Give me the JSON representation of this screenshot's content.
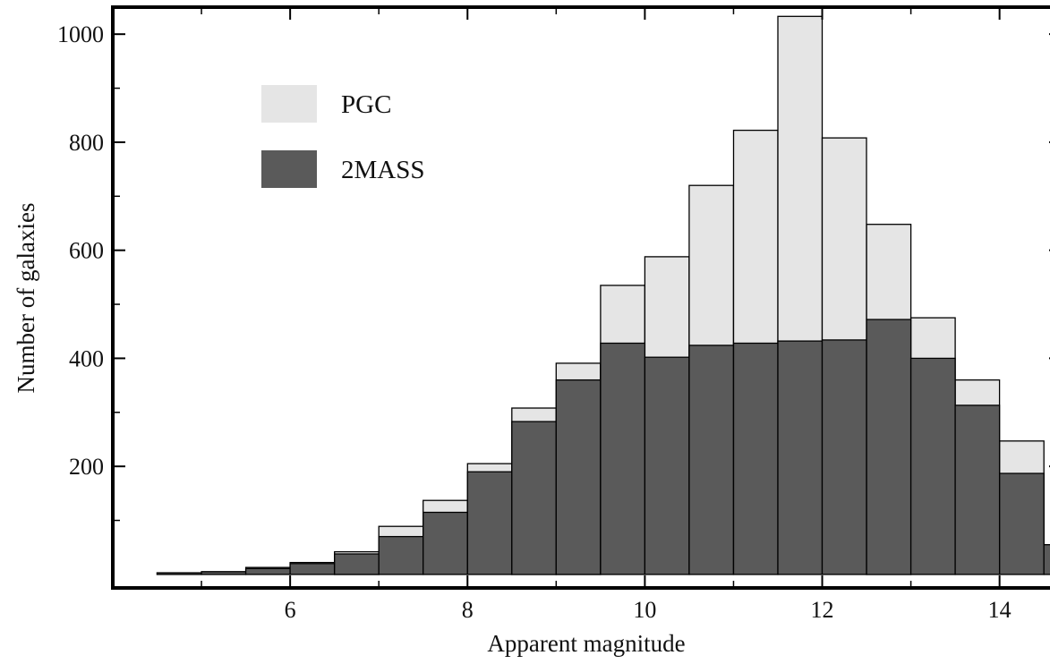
{
  "chart_data": {
    "type": "bar",
    "title": "",
    "xlabel": "Apparent magnitude",
    "ylabel": "Number of galaxies",
    "xlim": [
      4,
      14.7
    ],
    "ylim": [
      -25,
      1050
    ],
    "x_ticks": [
      6,
      8,
      10,
      12,
      14
    ],
    "y_ticks": [
      200,
      400,
      600,
      800,
      1000
    ],
    "bin_width": 0.5,
    "bin_starts": [
      4.5,
      5.0,
      5.5,
      6.0,
      6.5,
      7.0,
      7.5,
      8.0,
      8.5,
      9.0,
      9.5,
      10.0,
      10.5,
      11.0,
      11.5,
      12.0,
      12.5,
      13.0,
      13.5,
      14.0,
      14.5
    ],
    "series": [
      {
        "name": "PGC",
        "color": "#e5e5e5",
        "values": [
          3,
          5,
          13,
          22,
          42,
          89,
          137,
          205,
          308,
          391,
          535,
          588,
          720,
          822,
          1033,
          808,
          648,
          475,
          360,
          247,
          55
        ]
      },
      {
        "name": "2MASS",
        "color": "#5a5a5a",
        "values": [
          3,
          5,
          11,
          20,
          38,
          70,
          115,
          190,
          283,
          360,
          428,
          402,
          424,
          428,
          432,
          434,
          472,
          400,
          313,
          187,
          55
        ]
      }
    ],
    "legend": {
      "placement": "top-left",
      "entries": [
        {
          "label": "PGC",
          "color": "#e5e5e5"
        },
        {
          "label": "2MASS",
          "color": "#5a5a5a"
        }
      ]
    },
    "grid": false
  }
}
